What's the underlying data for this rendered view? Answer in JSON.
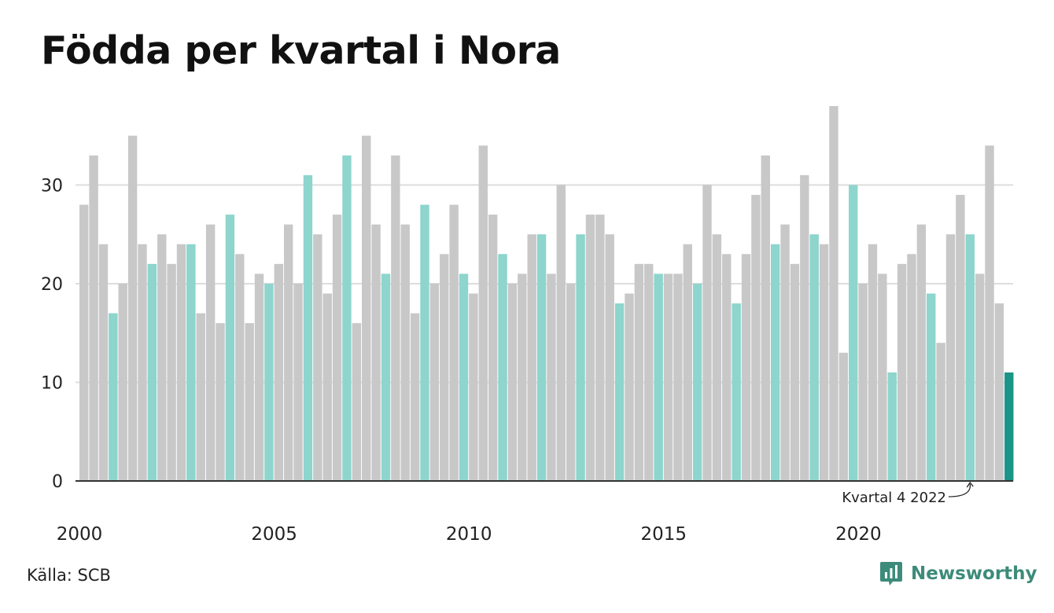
{
  "title": "Födda per kvartal i Nora",
  "source": "Källa: SCB",
  "brand": "Newsworthy",
  "colors": {
    "default": "#c8c8c8",
    "quarter4": "#8dd5cd",
    "highlight": "#1a9486",
    "grid": "#dddddd",
    "axis": "#333333",
    "brand": "#3d8b7a"
  },
  "chart_data": {
    "type": "bar",
    "title": "Födda per kvartal i Nora",
    "xlabel": "",
    "ylabel": "",
    "ylim": [
      0,
      38
    ],
    "y_ticks": [
      0,
      10,
      20,
      30
    ],
    "x_tick_labels": [
      "2000",
      "2005",
      "2010",
      "2015",
      "2020"
    ],
    "start_year": 2000,
    "start_quarter": 1,
    "values": [
      28,
      33,
      24,
      17,
      20,
      35,
      24,
      22,
      25,
      22,
      24,
      24,
      17,
      26,
      16,
      27,
      23,
      16,
      21,
      20,
      22,
      26,
      20,
      31,
      25,
      19,
      27,
      33,
      16,
      35,
      26,
      21,
      33,
      26,
      17,
      28,
      20,
      23,
      28,
      21,
      19,
      34,
      27,
      23,
      20,
      21,
      25,
      25,
      21,
      30,
      20,
      25,
      27,
      27,
      25,
      18,
      19,
      22,
      22,
      21,
      21,
      21,
      24,
      20,
      30,
      25,
      23,
      18,
      23,
      29,
      33,
      24,
      26,
      22,
      31,
      25,
      24,
      38,
      13,
      30,
      20,
      24,
      21,
      11,
      22,
      23,
      26,
      19,
      14,
      25,
      29,
      25,
      21,
      34,
      18,
      11
    ],
    "annotation": "Kvartal 4 2022",
    "grid": true,
    "legend": "none"
  }
}
